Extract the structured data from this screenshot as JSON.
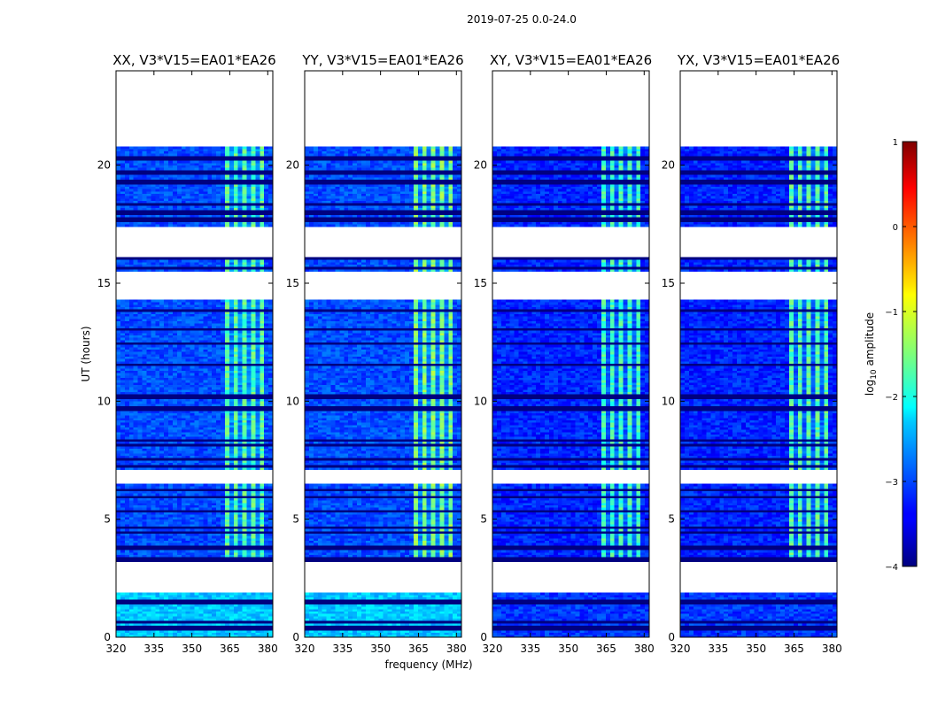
{
  "figure": {
    "suptitle": "2019-07-25 0.0-24.0"
  },
  "chart_data": {
    "type": "heatmap",
    "xlabel": "frequency (MHz)",
    "ylabel": "UT (hours)",
    "xlim": [
      320,
      382
    ],
    "ylim": [
      0,
      24
    ],
    "xticks": [
      320,
      335,
      350,
      365,
      380
    ],
    "yticks": [
      0,
      5,
      10,
      15,
      20
    ],
    "colorbar": {
      "label": "log10 amplitude",
      "label_base": "log",
      "label_sub": "10",
      "label_rest": " amplitude",
      "range": [
        -4,
        1
      ],
      "ticks": [
        -4,
        -3,
        -2,
        -1,
        0,
        1
      ],
      "tick_labels": [
        "−4",
        "−3",
        "−2",
        "−1",
        "0",
        "1"
      ],
      "colormap": "jet"
    },
    "rfi_band_mhz": [
      363,
      380
    ],
    "flagged_hours": [
      [
        1.95,
        3.15
      ],
      [
        6.55,
        7.05
      ],
      [
        14.3,
        15.45
      ],
      [
        16.15,
        16.6
      ],
      [
        16.65,
        17.35
      ],
      [
        20.85,
        24.0
      ]
    ],
    "data_gaps_hours": [
      [
        0.35,
        0.45
      ],
      [
        0.6,
        0.7
      ],
      [
        1.45,
        1.6
      ],
      [
        3.3,
        3.35
      ],
      [
        3.8,
        3.85
      ],
      [
        4.4,
        4.5
      ],
      [
        4.6,
        4.65
      ],
      [
        5.3,
        5.35
      ],
      [
        5.9,
        5.95
      ],
      [
        6.2,
        6.25
      ],
      [
        7.2,
        7.25
      ],
      [
        7.55,
        7.6
      ],
      [
        8.1,
        8.15
      ],
      [
        8.35,
        8.4
      ],
      [
        9.7,
        9.75
      ],
      [
        10.2,
        10.25
      ],
      [
        11.5,
        11.55
      ],
      [
        12.4,
        12.45
      ],
      [
        13.0,
        13.05
      ],
      [
        13.8,
        13.85
      ],
      [
        15.6,
        15.7
      ],
      [
        16.0,
        16.1
      ],
      [
        17.7,
        17.75
      ],
      [
        18.0,
        18.05
      ],
      [
        18.3,
        18.4
      ],
      [
        19.3,
        19.4
      ],
      [
        19.7,
        19.75
      ],
      [
        20.3,
        20.4
      ]
    ],
    "panels": [
      {
        "title": "XX, V3*V15=EA01*EA26",
        "base_log_amp": -3.0,
        "rfi_log_amp": -1.7,
        "low_band_log_amp": -2.4
      },
      {
        "title": "YY, V3*V15=EA01*EA26",
        "base_log_amp": -3.0,
        "rfi_log_amp": -1.5,
        "low_band_log_amp": -2.4
      },
      {
        "title": "XY, V3*V15=EA01*EA26",
        "base_log_amp": -3.2,
        "rfi_log_amp": -1.8,
        "low_band_log_amp": -3.1
      },
      {
        "title": "YX, V3*V15=EA01*EA26",
        "base_log_amp": -3.2,
        "rfi_log_amp": -1.7,
        "low_band_log_amp": -3.1
      }
    ]
  }
}
